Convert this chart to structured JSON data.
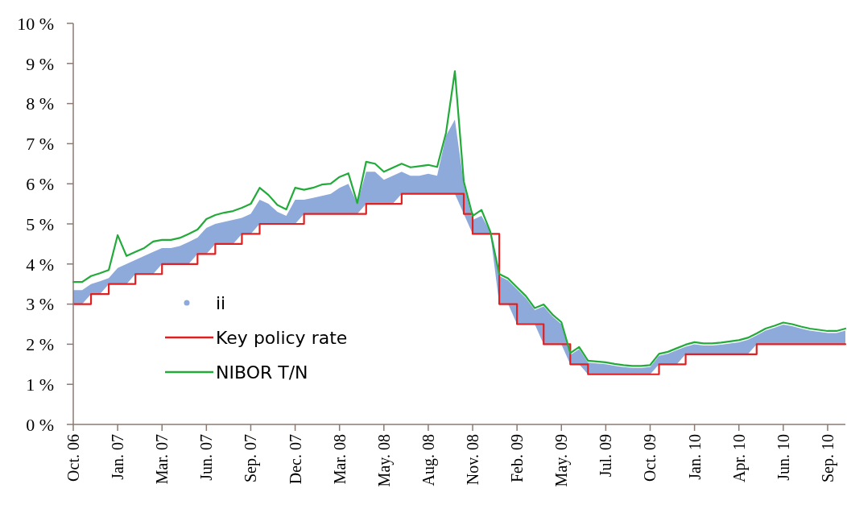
{
  "chart_data": {
    "type": "line",
    "categories": [
      "Oct. 06",
      null,
      null,
      null,
      null,
      "Jan. 07",
      null,
      null,
      null,
      null,
      "Mar. 07",
      null,
      null,
      null,
      null,
      "Jun. 07",
      null,
      null,
      null,
      null,
      "Sep. 07",
      null,
      null,
      null,
      null,
      "Dec. 07",
      null,
      null,
      null,
      null,
      "Mar. 08",
      null,
      null,
      null,
      null,
      "May. 08",
      null,
      null,
      null,
      null,
      "Aug. 08",
      null,
      null,
      null,
      null,
      "Nov. 08",
      null,
      null,
      null,
      null,
      "Feb. 09",
      null,
      null,
      null,
      null,
      "May. 09",
      null,
      null,
      null,
      null,
      "Jul. 09",
      null,
      null,
      null,
      null,
      "Oct. 09",
      null,
      null,
      null,
      null,
      "Jan. 10",
      null,
      null,
      null,
      null,
      "Apr. 10",
      null,
      null,
      null,
      null,
      "Jun. 10",
      null,
      null,
      null,
      null,
      "Sep. 10",
      null,
      null
    ],
    "ylim": [
      0,
      10
    ],
    "yticks": [
      {
        "value": 0,
        "label": "0 %"
      },
      {
        "value": 1,
        "label": "1 %"
      },
      {
        "value": 2,
        "label": "2 %"
      },
      {
        "value": 3,
        "label": "3 %"
      },
      {
        "value": 4,
        "label": "4 %"
      },
      {
        "value": 5,
        "label": "5 %"
      },
      {
        "value": 6,
        "label": "6 %"
      },
      {
        "value": 7,
        "label": "7 %"
      },
      {
        "value": 8,
        "label": "8 %"
      },
      {
        "value": 9,
        "label": "9 %"
      },
      {
        "value": 10,
        "label": "10 %"
      }
    ],
    "legend": "left",
    "series": [
      {
        "name": "ii",
        "type": "area",
        "color": "#8eaadb",
        "values": [
          3.35,
          3.35,
          3.5,
          3.57,
          3.65,
          3.9,
          4.0,
          4.1,
          4.2,
          4.3,
          4.4,
          4.4,
          4.45,
          4.55,
          4.66,
          4.9,
          5.0,
          5.05,
          5.1,
          5.15,
          5.25,
          5.6,
          5.5,
          5.3,
          5.2,
          5.6,
          5.6,
          5.65,
          5.7,
          5.75,
          5.9,
          6.0,
          5.5,
          6.3,
          6.3,
          6.1,
          6.2,
          6.3,
          6.2,
          6.2,
          6.25,
          6.2,
          7.2,
          7.6,
          6.0,
          5.1,
          5.2,
          4.8,
          3.7,
          3.59,
          3.37,
          3.15,
          2.85,
          2.94,
          2.69,
          2.5,
          1.73,
          1.88,
          1.54,
          1.52,
          1.5,
          1.46,
          1.43,
          1.41,
          1.41,
          1.43,
          1.71,
          1.76,
          1.85,
          1.94,
          2.0,
          1.97,
          1.97,
          1.99,
          2.02,
          2.05,
          2.11,
          2.22,
          2.34,
          2.41,
          2.49,
          2.45,
          2.39,
          2.34,
          2.31,
          2.28,
          2.28,
          2.34
        ]
      },
      {
        "name": "Key policy rate",
        "type": "step",
        "color": "#e02020",
        "values": [
          3,
          3,
          3.25,
          3.25,
          3.5,
          3.5,
          3.5,
          3.75,
          3.75,
          3.75,
          4,
          4,
          4,
          4,
          4.25,
          4.25,
          4.5,
          4.5,
          4.5,
          4.75,
          4.75,
          5,
          5,
          5,
          5,
          5,
          5.25,
          5.25,
          5.25,
          5.25,
          5.25,
          5.25,
          5.25,
          5.5,
          5.5,
          5.5,
          5.5,
          5.75,
          5.75,
          5.75,
          5.75,
          5.75,
          5.75,
          5.75,
          5.25,
          4.75,
          4.75,
          4.75,
          3,
          3,
          2.5,
          2.5,
          2.5,
          2,
          2,
          2,
          1.5,
          1.5,
          1.25,
          1.25,
          1.25,
          1.25,
          1.25,
          1.25,
          1.25,
          1.25,
          1.5,
          1.5,
          1.5,
          1.75,
          1.75,
          1.75,
          1.75,
          1.75,
          1.75,
          1.75,
          1.75,
          2,
          2,
          2,
          2,
          2,
          2,
          2,
          2,
          2,
          2,
          2
        ]
      },
      {
        "name": "NIBOR T/N",
        "color": "#22aa3a",
        "values": [
          3.55,
          3.55,
          3.7,
          3.77,
          3.85,
          4.72,
          4.2,
          4.3,
          4.4,
          4.56,
          4.6,
          4.6,
          4.65,
          4.75,
          4.86,
          5.12,
          5.22,
          5.28,
          5.32,
          5.4,
          5.5,
          5.9,
          5.72,
          5.47,
          5.36,
          5.9,
          5.85,
          5.9,
          5.98,
          6.0,
          6.17,
          6.26,
          5.52,
          6.55,
          6.5,
          6.3,
          6.4,
          6.5,
          6.41,
          6.44,
          6.47,
          6.42,
          7.27,
          8.81,
          6.06,
          5.2,
          5.35,
          4.8,
          3.75,
          3.64,
          3.42,
          3.2,
          2.9,
          2.99,
          2.74,
          2.55,
          1.78,
          1.93,
          1.59,
          1.57,
          1.55,
          1.51,
          1.48,
          1.46,
          1.46,
          1.48,
          1.76,
          1.81,
          1.9,
          1.99,
          2.05,
          2.02,
          2.02,
          2.04,
          2.07,
          2.1,
          2.16,
          2.27,
          2.39,
          2.46,
          2.54,
          2.5,
          2.44,
          2.39,
          2.36,
          2.33,
          2.33,
          2.39
        ]
      }
    ]
  }
}
